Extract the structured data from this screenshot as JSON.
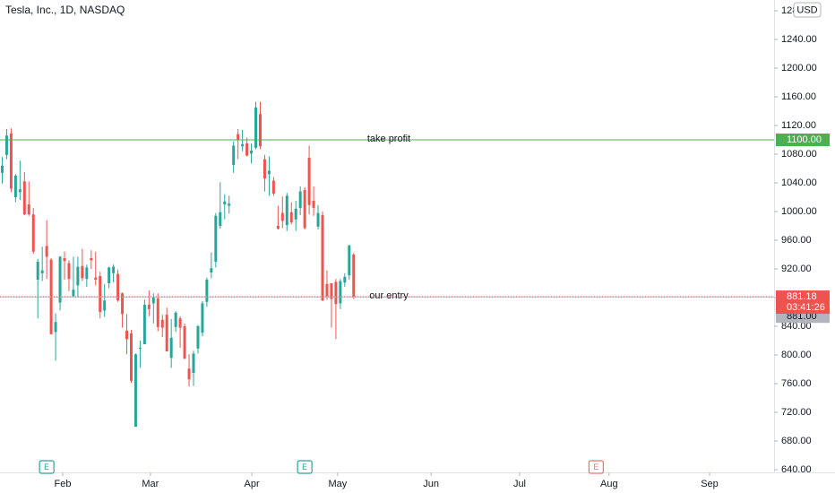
{
  "chart_data": {
    "type": "candlestick",
    "title": "Tesla, Inc., 1D, NASDAQ",
    "currency": "USD",
    "up_color": "#26a69a",
    "down_color": "#ef5350",
    "open": [
      1054,
      1079,
      1109,
      1020,
      1027,
      1042,
      1010,
      996,
      905,
      914,
      952,
      933,
      832,
      873,
      935,
      928,
      882,
      897,
      924,
      906,
      935,
      908,
      910,
      862,
      900,
      914,
      913,
      886,
      834,
      830,
      700,
      809,
      815,
      870,
      872,
      879,
      849,
      856,
      796,
      839,
      851,
      840,
      781,
      775,
      809,
      831,
      874,
      915,
      930,
      980,
      1010,
      1008,
      1065,
      1108,
      1091,
      1095,
      1081,
      1089,
      1136,
      1073,
      1052,
      1043,
      980,
      998,
      981,
      999,
      989,
      1005,
      1030,
      1075,
      1015,
      979,
      995,
      899,
      900,
      902,
      872,
      901,
      911,
      940
    ],
    "high": [
      1076,
      1115,
      1116,
      1052,
      1071,
      1055,
      1042,
      1005,
      934,
      951,
      988,
      935,
      858,
      938,
      944,
      932,
      937,
      937,
      948,
      926,
      946,
      944,
      916,
      899,
      923,
      926,
      919,
      887,
      857,
      835,
      802,
      820,
      877,
      890,
      886,
      886,
      856,
      866,
      850,
      861,
      854,
      844,
      801,
      806,
      842,
      875,
      908,
      943,
      998,
      1041,
      1024,
      1022,
      1098,
      1115,
      1114,
      1103,
      1095,
      1153,
      1153,
      1079,
      1077,
      1048,
      1008,
      1021,
      1026,
      1013,
      1015,
      1035,
      1034,
      1092,
      1035,
      1009,
      1000,
      918,
      900,
      906,
      906,
      914,
      953,
      942
    ],
    "low": [
      1039,
      1073,
      1027,
      1013,
      1016,
      995,
      994,
      941,
      851,
      903,
      906,
      829,
      792,
      862,
      905,
      889,
      881,
      881,
      903,
      895,
      920,
      897,
      851,
      853,
      893,
      901,
      874,
      838,
      801,
      761,
      700,
      782,
      815,
      854,
      844,
      833,
      825,
      805,
      782,
      832,
      810,
      794,
      756,
      757,
      802,
      826,
      867,
      907,
      922,
      976,
      989,
      997,
      1054,
      1073,
      1084,
      1077,
      1067,
      1087,
      1087,
      1028,
      1022,
      1022,
      975,
      977,
      973,
      982,
      973,
      995,
      975,
      996,
      994,
      975,
      875,
      877,
      838,
      822,
      864,
      895,
      905,
      878
    ],
    "close": [
      1064,
      1106,
      1032,
      1050,
      1031,
      996,
      996,
      944,
      930,
      918,
      937,
      829,
      846,
      937,
      931,
      906,
      891,
      923,
      907,
      922,
      932,
      905,
      860,
      876,
      922,
      923,
      876,
      857,
      822,
      764,
      801,
      810,
      870,
      864,
      880,
      839,
      838,
      805,
      824,
      859,
      838,
      795,
      766,
      802,
      840,
      872,
      905,
      921,
      994,
      999,
      1014,
      1011,
      1092,
      1100,
      1094,
      1078,
      1085,
      1145,
      1091,
      1046,
      1057,
      1025,
      976,
      987,
      1022,
      985,
      1004,
      1028,
      977,
      1009,
      1005,
      998,
      876,
      882,
      878,
      871,
      903,
      909,
      953,
      881.18
    ],
    "xlim": [
      -0.5,
      173.5
    ],
    "xticks": [
      {
        "value": 13.6,
        "label": "Feb"
      },
      {
        "value": 33.3,
        "label": "Mar"
      },
      {
        "value": 56.1,
        "label": "Apr"
      },
      {
        "value": 75.4,
        "label": "May"
      },
      {
        "value": 96.4,
        "label": "Jun"
      },
      {
        "value": 116.3,
        "label": "Jul"
      },
      {
        "value": 136.4,
        "label": "Aug"
      },
      {
        "value": 159,
        "label": "Sep"
      }
    ],
    "ylim": [
      636.25,
      1295
    ],
    "yticks": [
      {
        "value": 640,
        "label": "640.00"
      },
      {
        "value": 680,
        "label": "680.00"
      },
      {
        "value": 720,
        "label": "720.00"
      },
      {
        "value": 760,
        "label": "760.00"
      },
      {
        "value": 800,
        "label": "800.00"
      },
      {
        "value": 840,
        "label": "840.00"
      },
      {
        "value": 880,
        "label": "880.00"
      },
      {
        "value": 920,
        "label": "920.00"
      },
      {
        "value": 960,
        "label": "960.00"
      },
      {
        "value": 1000,
        "label": "1000.00"
      },
      {
        "value": 1040,
        "label": "1040.00"
      },
      {
        "value": 1080,
        "label": "1080.00"
      },
      {
        "value": 1120,
        "label": "1120.00"
      },
      {
        "value": 1160,
        "label": "1160.00"
      },
      {
        "value": 1200,
        "label": "1200.00"
      },
      {
        "value": 1240,
        "label": "1240.00"
      },
      {
        "value": 1280,
        "label": "1280.00"
      }
    ],
    "grid": false,
    "lines": [
      {
        "label": "take profit",
        "value": 1100,
        "value_label": "1100.00",
        "color": "#4caf50"
      },
      {
        "label": "our entry",
        "value": 881,
        "value_label": "881.00",
        "color": "#b2b5be"
      }
    ],
    "last_price": {
      "value": 881.18,
      "label": "881.18",
      "countdown": "03:41:26",
      "color": "#ef5350"
    },
    "events": [
      {
        "label": "E",
        "x": 10,
        "color": "#26a69a"
      },
      {
        "label": "E",
        "x": 68,
        "color": "#26a69a"
      },
      {
        "label": "E",
        "x": 133.5,
        "color": "#e57373"
      }
    ]
  }
}
